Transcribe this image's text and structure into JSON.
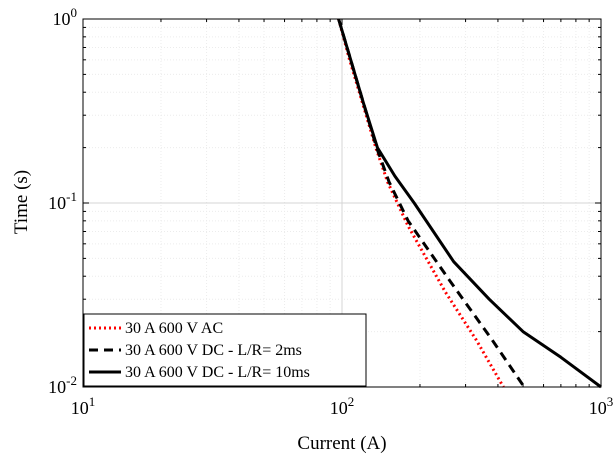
{
  "chart_data": {
    "type": "line",
    "xscale": "log",
    "yscale": "log",
    "xlim": [
      10,
      1000
    ],
    "ylim": [
      0.01,
      1
    ],
    "grid": true,
    "minor_grid": true,
    "xlabel": "Current (A)",
    "ylabel": "Time (s)",
    "x_ticks": [
      {
        "value": 10,
        "base": "10",
        "exp": "1"
      },
      {
        "value": 100,
        "base": "10",
        "exp": "2"
      },
      {
        "value": 1000,
        "base": "10",
        "exp": "3"
      }
    ],
    "y_ticks": [
      {
        "value": 1,
        "base": "10",
        "exp": "0"
      },
      {
        "value": 0.1,
        "base": "10",
        "exp": "-1"
      },
      {
        "value": 0.01,
        "base": "10",
        "exp": "-2"
      }
    ],
    "legend_position": "bottom-left",
    "series": [
      {
        "name": "30 A 600 V AC",
        "color": "#ff0000",
        "style": "dotted",
        "points": [
          [
            97,
            1
          ],
          [
            107,
            0.6
          ],
          [
            120,
            0.35
          ],
          [
            135,
            0.2
          ],
          [
            150,
            0.13
          ],
          [
            180,
            0.075
          ],
          [
            250,
            0.033
          ],
          [
            330,
            0.018
          ],
          [
            420,
            0.01
          ]
        ]
      },
      {
        "name": "30 A 600 V DC - L/R= 2ms",
        "color": "#000000",
        "style": "dashed",
        "points": [
          [
            97,
            1
          ],
          [
            108,
            0.6
          ],
          [
            121,
            0.35
          ],
          [
            136,
            0.2
          ],
          [
            152,
            0.13
          ],
          [
            180,
            0.08
          ],
          [
            260,
            0.038
          ],
          [
            380,
            0.018
          ],
          [
            505,
            0.01
          ]
        ]
      },
      {
        "name": "30 A 600 V DC - L/R= 10ms",
        "color": "#000000",
        "style": "solid",
        "points": [
          [
            97,
            1
          ],
          [
            108,
            0.6
          ],
          [
            121,
            0.35
          ],
          [
            137,
            0.2
          ],
          [
            160,
            0.14
          ],
          [
            190,
            0.1
          ],
          [
            270,
            0.048
          ],
          [
            370,
            0.03
          ],
          [
            500,
            0.02
          ],
          [
            700,
            0.0145
          ],
          [
            1000,
            0.01
          ]
        ]
      }
    ]
  }
}
